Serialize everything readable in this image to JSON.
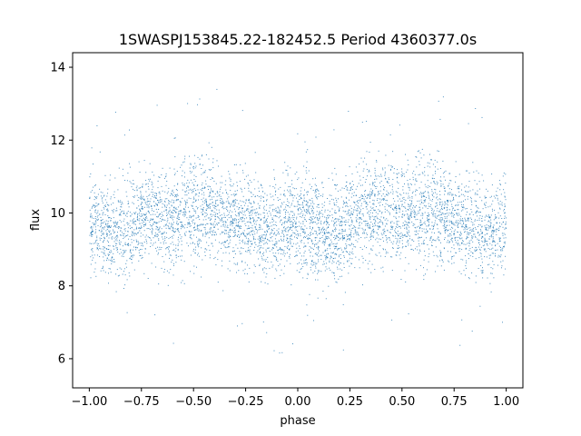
{
  "chart_data": {
    "type": "scatter",
    "title": "1SWASPJ153845.22-182452.5 Period 4360377.0s",
    "xlabel": "phase",
    "ylabel": "flux",
    "xlim": [
      -1.08,
      1.08
    ],
    "ylim": [
      5.2,
      14.4
    ],
    "xticks": [
      -1.0,
      -0.75,
      -0.5,
      -0.25,
      0.0,
      0.25,
      0.5,
      0.75,
      1.0
    ],
    "xtick_labels": [
      "−1.00",
      "−0.75",
      "−0.50",
      "−0.25",
      "0.00",
      "0.25",
      "0.50",
      "0.75",
      "1.00"
    ],
    "yticks": [
      6,
      8,
      10,
      12,
      14
    ],
    "ytick_labels": [
      "6",
      "8",
      "10",
      "12",
      "14"
    ],
    "grid": false,
    "color": "#1f77b4",
    "series": [
      {
        "phase": [
          -1.0,
          -0.95,
          -0.9,
          -0.85,
          -0.8,
          -0.75,
          -0.7,
          -0.65,
          -0.6,
          -0.55,
          -0.5,
          -0.45,
          -0.4,
          -0.35,
          -0.3,
          -0.25,
          -0.2,
          -0.15,
          -0.1,
          -0.05,
          0.0,
          0.05,
          0.1,
          0.15,
          0.2,
          0.25,
          0.3,
          0.35,
          0.4,
          0.45,
          0.5,
          0.55,
          0.6,
          0.65,
          0.7,
          0.75,
          0.8,
          0.85,
          0.9,
          0.95,
          1.0
        ],
        "flux_center": [
          9.6,
          9.7,
          9.5,
          9.4,
          9.6,
          9.8,
          10.0,
          9.9,
          9.8,
          10.0,
          10.1,
          10.2,
          10.0,
          9.9,
          9.8,
          9.7,
          9.6,
          9.5,
          9.6,
          9.7,
          9.8,
          9.7,
          9.6,
          9.5,
          9.6,
          9.8,
          9.9,
          10.0,
          10.1,
          10.0,
          9.9,
          10.0,
          10.1,
          10.0,
          9.9,
          9.8,
          9.7,
          9.6,
          9.5,
          9.6,
          9.7
        ],
        "flux_spread": [
          1.3,
          1.2,
          1.1,
          1.3,
          1.2,
          1.1,
          1.2,
          1.1,
          1.2,
          1.3,
          1.4,
          1.3,
          1.2,
          1.2,
          1.1,
          1.2,
          1.1,
          1.2,
          1.1,
          1.2,
          1.3,
          1.3,
          1.2,
          1.2,
          1.3,
          1.2,
          1.2,
          1.3,
          1.2,
          1.2,
          1.3,
          1.3,
          1.3,
          1.2,
          1.2,
          1.1,
          1.2,
          1.2,
          1.2,
          1.3,
          1.3
        ]
      }
    ]
  }
}
